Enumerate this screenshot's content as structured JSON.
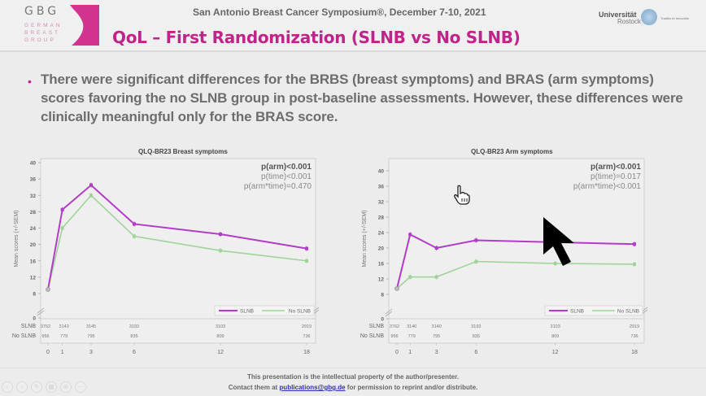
{
  "header": {
    "logo_text": "GBG",
    "logo_sub": [
      "GERMAN",
      "BREAST",
      "GROUP"
    ],
    "conference": "San Antonio Breast Cancer Symposium®, December 7-10, 2021",
    "title": "QoL – First Randomization (SLNB vs No SLNB)",
    "university_line1": "Universität",
    "university_line2": "Rostock",
    "university_tag": "Traditio et Innovatio"
  },
  "body": {
    "bullet": "•",
    "text": "There were significant differences for the BRBS (breast symptoms) and BRAS (arm symptoms) scores favoring the no SLNB group in post-baseline assessments. However, these differences were clinically meaningful only for the BRAS score."
  },
  "colors": {
    "accent": "#c0238a",
    "slnb": "#b13cc8",
    "no_slnb": "#9fd39a"
  },
  "chart_data": [
    {
      "type": "line",
      "title": "QLQ-BR23 Breast symptoms",
      "ylabel": "Mean scores (+/-SEM)",
      "xlabel": "",
      "x": [
        0,
        1,
        3,
        6,
        12,
        18
      ],
      "x_tick_labels": [
        "0",
        "1",
        "3",
        "6",
        "12",
        "18"
      ],
      "yticks": [
        0,
        8,
        12,
        16,
        20,
        24,
        28,
        32,
        36,
        40
      ],
      "ylim": [
        0,
        40
      ],
      "axis_break": true,
      "series": [
        {
          "name": "SLNB",
          "values": [
            9,
            28.5,
            34.5,
            25,
            22.5,
            19
          ]
        },
        {
          "name": "No SLNB",
          "values": [
            9,
            24,
            32,
            22,
            18.5,
            16
          ]
        }
      ],
      "annotations": [
        "p(arm)<0.001",
        "p(time)<0.001",
        "p(arm*time)=0.470"
      ],
      "legend": {
        "position": "bottom-right",
        "entries": [
          "SLNB",
          "No SLNB"
        ]
      },
      "at_risk": {
        "row_labels": [
          "SLNB",
          "No SLNB"
        ],
        "SLNB": [
          "3762",
          "3143",
          "3145",
          "3193",
          "3103",
          "2919"
        ],
        "No SLNB": [
          "956",
          "779",
          "795",
          "835",
          "809",
          "736"
        ]
      }
    },
    {
      "type": "line",
      "title": "QLQ-BR23 Arm symptoms",
      "ylabel": "Mean scores (+/-SEM)",
      "xlabel": "",
      "x": [
        0,
        1,
        3,
        6,
        12,
        18
      ],
      "x_tick_labels": [
        "0",
        "1",
        "3",
        "6",
        "12",
        "18"
      ],
      "yticks": [
        0,
        8,
        12,
        16,
        20,
        24,
        28,
        32,
        36,
        40
      ],
      "ylim": [
        0,
        40
      ],
      "axis_break": true,
      "series": [
        {
          "name": "SLNB",
          "values": [
            9.5,
            23.5,
            20,
            22,
            21.5,
            21
          ]
        },
        {
          "name": "No SLNB",
          "values": [
            9.5,
            12.5,
            12.5,
            16.5,
            16,
            15.8
          ]
        }
      ],
      "annotations": [
        "p(arm)<0.001",
        "p(time)=0.017",
        "p(arm*time)<0.001"
      ],
      "legend": {
        "position": "bottom-right",
        "entries": [
          "SLNB",
          "No SLNB"
        ]
      },
      "at_risk": {
        "row_labels": [
          "SLNB",
          "No SLNB"
        ],
        "SLNB": [
          "3762",
          "3140",
          "3140",
          "3193",
          "3103",
          "2919"
        ],
        "No SLNB": [
          "956",
          "779",
          "795",
          "835",
          "809",
          "736"
        ]
      }
    }
  ],
  "footer": {
    "line1": "This presentation is the intellectual property of the author/presenter.",
    "line2_prefix": "Contact them at ",
    "email": "publications@gbg.de",
    "line2_suffix": " for permission to reprint and/or distribute."
  },
  "controls": [
    {
      "icon": "previous-icon",
      "glyph": "‹"
    },
    {
      "icon": "next-icon",
      "glyph": "›"
    },
    {
      "icon": "pen-icon",
      "glyph": "✎"
    },
    {
      "icon": "slides-icon",
      "glyph": "▦"
    },
    {
      "icon": "zoom-icon",
      "glyph": "⊕"
    },
    {
      "icon": "more-icon",
      "glyph": "⋯"
    }
  ]
}
